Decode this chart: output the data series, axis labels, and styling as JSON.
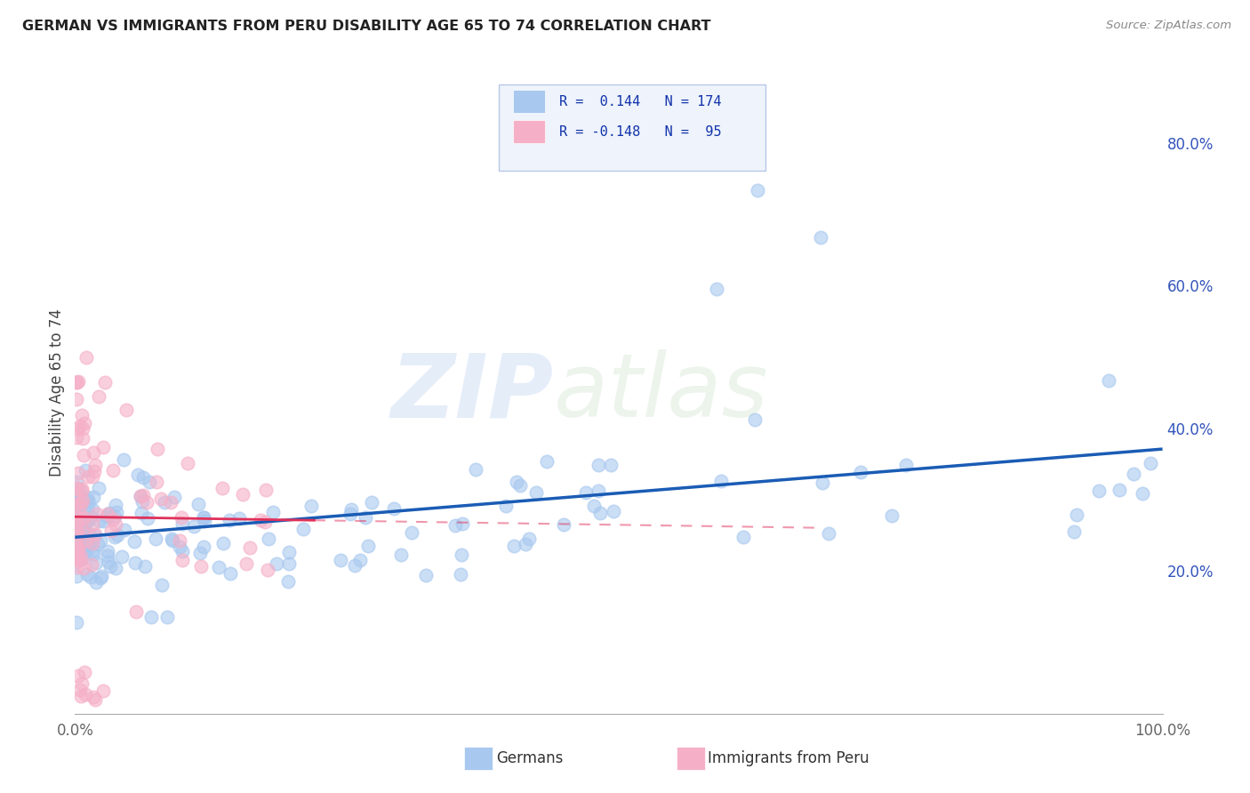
{
  "title": "GERMAN VS IMMIGRANTS FROM PERU DISABILITY AGE 65 TO 74 CORRELATION CHART",
  "source": "Source: ZipAtlas.com",
  "ylabel": "Disability Age 65 to 74",
  "xlim": [
    0.0,
    1.0
  ],
  "ylim": [
    -0.05,
    0.92
  ],
  "plot_ylim": [
    0.0,
    0.9
  ],
  "x_ticks": [
    0.0,
    0.1,
    0.2,
    0.3,
    0.4,
    0.5,
    0.6,
    0.7,
    0.8,
    0.9,
    1.0
  ],
  "x_tick_labels": [
    "0.0%",
    "",
    "",
    "",
    "",
    "",
    "",
    "",
    "",
    "",
    "100.0%"
  ],
  "y_ticks": [
    0.2,
    0.4,
    0.6,
    0.8
  ],
  "y_tick_labels": [
    "20.0%",
    "40.0%",
    "60.0%",
    "80.0%"
  ],
  "german_R": 0.144,
  "german_N": 174,
  "peru_R": -0.148,
  "peru_N": 95,
  "german_color": "#a8c8ef",
  "german_line_color": "#1a5cb5",
  "peru_color": "#f5b0c8",
  "peru_line_color": "#e0305a",
  "watermark_zip": "ZIP",
  "watermark_atlas": "atlas",
  "legend_facecolor": "#eef3fc",
  "legend_edgecolor": "#b8c8e8"
}
